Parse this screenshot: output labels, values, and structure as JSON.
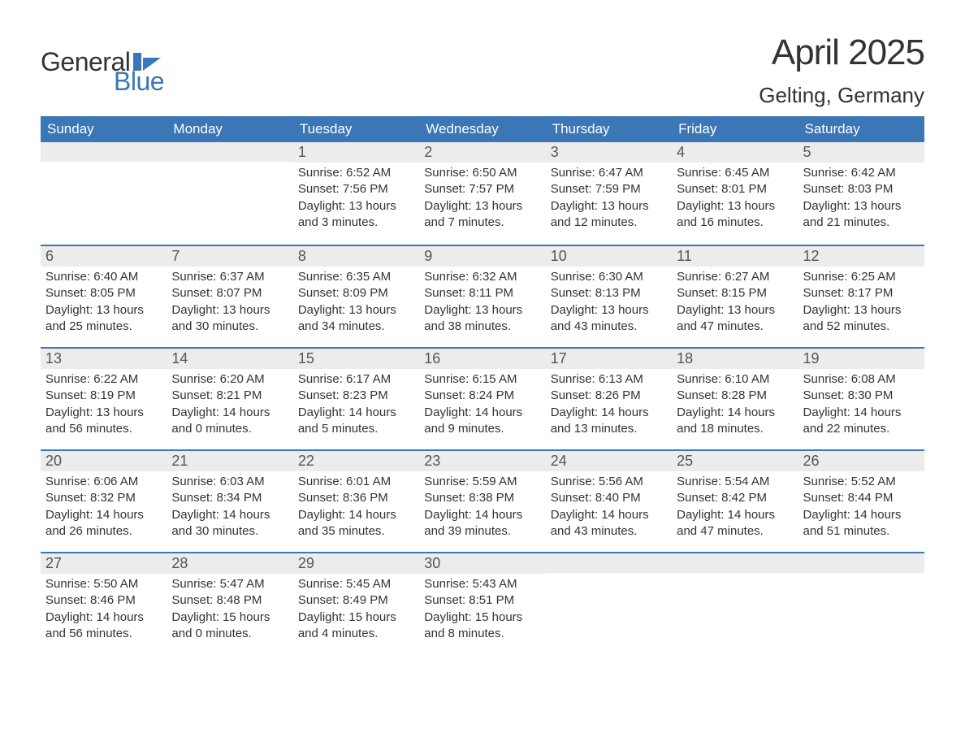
{
  "logo": {
    "line1": "General",
    "line2": "Blue",
    "flag_color": "#3b76b6"
  },
  "title": {
    "month": "April 2025",
    "location": "Gelting, Germany"
  },
  "colors": {
    "header_bg": "#3b76b6",
    "header_text": "#ffffff",
    "daynum_bg": "#ececec",
    "text": "#333333",
    "row_border": "#3b76b6"
  },
  "typography": {
    "title_month_fontsize": 44,
    "title_location_fontsize": 26,
    "dayheader_fontsize": 17,
    "daynum_fontsize": 18,
    "body_fontsize": 15,
    "font_family": "Arial"
  },
  "day_headers": [
    "Sunday",
    "Monday",
    "Tuesday",
    "Wednesday",
    "Thursday",
    "Friday",
    "Saturday"
  ],
  "weeks": [
    [
      {
        "num": "",
        "sunrise": "",
        "sunset": "",
        "daylight": ""
      },
      {
        "num": "",
        "sunrise": "",
        "sunset": "",
        "daylight": ""
      },
      {
        "num": "1",
        "sunrise": "Sunrise: 6:52 AM",
        "sunset": "Sunset: 7:56 PM",
        "daylight": "Daylight: 13 hours and 3 minutes."
      },
      {
        "num": "2",
        "sunrise": "Sunrise: 6:50 AM",
        "sunset": "Sunset: 7:57 PM",
        "daylight": "Daylight: 13 hours and 7 minutes."
      },
      {
        "num": "3",
        "sunrise": "Sunrise: 6:47 AM",
        "sunset": "Sunset: 7:59 PM",
        "daylight": "Daylight: 13 hours and 12 minutes."
      },
      {
        "num": "4",
        "sunrise": "Sunrise: 6:45 AM",
        "sunset": "Sunset: 8:01 PM",
        "daylight": "Daylight: 13 hours and 16 minutes."
      },
      {
        "num": "5",
        "sunrise": "Sunrise: 6:42 AM",
        "sunset": "Sunset: 8:03 PM",
        "daylight": "Daylight: 13 hours and 21 minutes."
      }
    ],
    [
      {
        "num": "6",
        "sunrise": "Sunrise: 6:40 AM",
        "sunset": "Sunset: 8:05 PM",
        "daylight": "Daylight: 13 hours and 25 minutes."
      },
      {
        "num": "7",
        "sunrise": "Sunrise: 6:37 AM",
        "sunset": "Sunset: 8:07 PM",
        "daylight": "Daylight: 13 hours and 30 minutes."
      },
      {
        "num": "8",
        "sunrise": "Sunrise: 6:35 AM",
        "sunset": "Sunset: 8:09 PM",
        "daylight": "Daylight: 13 hours and 34 minutes."
      },
      {
        "num": "9",
        "sunrise": "Sunrise: 6:32 AM",
        "sunset": "Sunset: 8:11 PM",
        "daylight": "Daylight: 13 hours and 38 minutes."
      },
      {
        "num": "10",
        "sunrise": "Sunrise: 6:30 AM",
        "sunset": "Sunset: 8:13 PM",
        "daylight": "Daylight: 13 hours and 43 minutes."
      },
      {
        "num": "11",
        "sunrise": "Sunrise: 6:27 AM",
        "sunset": "Sunset: 8:15 PM",
        "daylight": "Daylight: 13 hours and 47 minutes."
      },
      {
        "num": "12",
        "sunrise": "Sunrise: 6:25 AM",
        "sunset": "Sunset: 8:17 PM",
        "daylight": "Daylight: 13 hours and 52 minutes."
      }
    ],
    [
      {
        "num": "13",
        "sunrise": "Sunrise: 6:22 AM",
        "sunset": "Sunset: 8:19 PM",
        "daylight": "Daylight: 13 hours and 56 minutes."
      },
      {
        "num": "14",
        "sunrise": "Sunrise: 6:20 AM",
        "sunset": "Sunset: 8:21 PM",
        "daylight": "Daylight: 14 hours and 0 minutes."
      },
      {
        "num": "15",
        "sunrise": "Sunrise: 6:17 AM",
        "sunset": "Sunset: 8:23 PM",
        "daylight": "Daylight: 14 hours and 5 minutes."
      },
      {
        "num": "16",
        "sunrise": "Sunrise: 6:15 AM",
        "sunset": "Sunset: 8:24 PM",
        "daylight": "Daylight: 14 hours and 9 minutes."
      },
      {
        "num": "17",
        "sunrise": "Sunrise: 6:13 AM",
        "sunset": "Sunset: 8:26 PM",
        "daylight": "Daylight: 14 hours and 13 minutes."
      },
      {
        "num": "18",
        "sunrise": "Sunrise: 6:10 AM",
        "sunset": "Sunset: 8:28 PM",
        "daylight": "Daylight: 14 hours and 18 minutes."
      },
      {
        "num": "19",
        "sunrise": "Sunrise: 6:08 AM",
        "sunset": "Sunset: 8:30 PM",
        "daylight": "Daylight: 14 hours and 22 minutes."
      }
    ],
    [
      {
        "num": "20",
        "sunrise": "Sunrise: 6:06 AM",
        "sunset": "Sunset: 8:32 PM",
        "daylight": "Daylight: 14 hours and 26 minutes."
      },
      {
        "num": "21",
        "sunrise": "Sunrise: 6:03 AM",
        "sunset": "Sunset: 8:34 PM",
        "daylight": "Daylight: 14 hours and 30 minutes."
      },
      {
        "num": "22",
        "sunrise": "Sunrise: 6:01 AM",
        "sunset": "Sunset: 8:36 PM",
        "daylight": "Daylight: 14 hours and 35 minutes."
      },
      {
        "num": "23",
        "sunrise": "Sunrise: 5:59 AM",
        "sunset": "Sunset: 8:38 PM",
        "daylight": "Daylight: 14 hours and 39 minutes."
      },
      {
        "num": "24",
        "sunrise": "Sunrise: 5:56 AM",
        "sunset": "Sunset: 8:40 PM",
        "daylight": "Daylight: 14 hours and 43 minutes."
      },
      {
        "num": "25",
        "sunrise": "Sunrise: 5:54 AM",
        "sunset": "Sunset: 8:42 PM",
        "daylight": "Daylight: 14 hours and 47 minutes."
      },
      {
        "num": "26",
        "sunrise": "Sunrise: 5:52 AM",
        "sunset": "Sunset: 8:44 PM",
        "daylight": "Daylight: 14 hours and 51 minutes."
      }
    ],
    [
      {
        "num": "27",
        "sunrise": "Sunrise: 5:50 AM",
        "sunset": "Sunset: 8:46 PM",
        "daylight": "Daylight: 14 hours and 56 minutes."
      },
      {
        "num": "28",
        "sunrise": "Sunrise: 5:47 AM",
        "sunset": "Sunset: 8:48 PM",
        "daylight": "Daylight: 15 hours and 0 minutes."
      },
      {
        "num": "29",
        "sunrise": "Sunrise: 5:45 AM",
        "sunset": "Sunset: 8:49 PM",
        "daylight": "Daylight: 15 hours and 4 minutes."
      },
      {
        "num": "30",
        "sunrise": "Sunrise: 5:43 AM",
        "sunset": "Sunset: 8:51 PM",
        "daylight": "Daylight: 15 hours and 8 minutes."
      },
      {
        "num": "",
        "sunrise": "",
        "sunset": "",
        "daylight": ""
      },
      {
        "num": "",
        "sunrise": "",
        "sunset": "",
        "daylight": ""
      },
      {
        "num": "",
        "sunrise": "",
        "sunset": "",
        "daylight": ""
      }
    ]
  ]
}
